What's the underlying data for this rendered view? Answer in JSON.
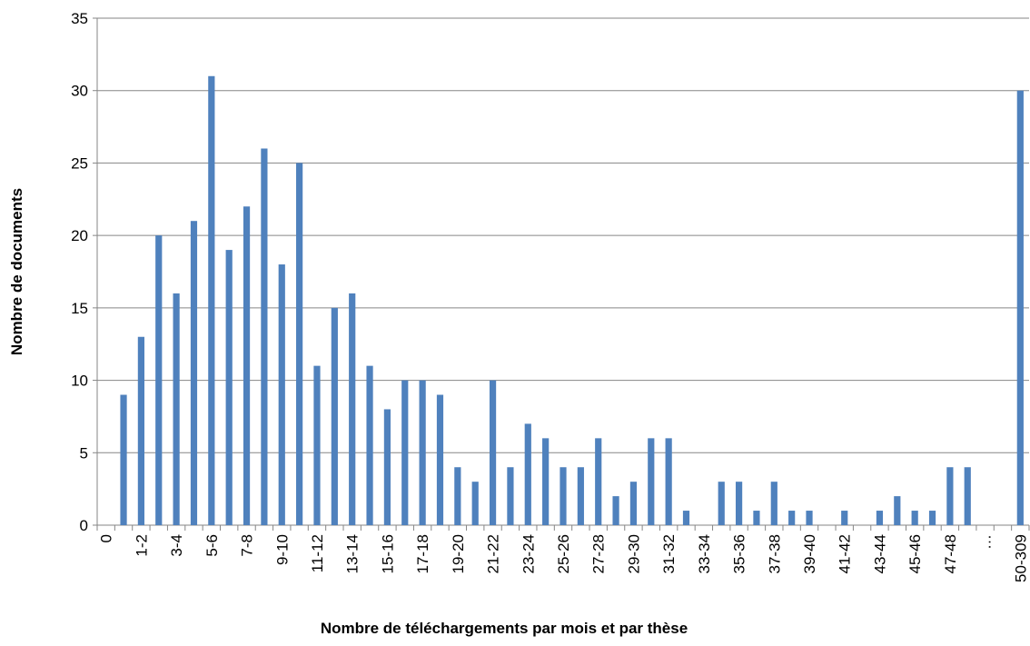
{
  "chart_data": {
    "type": "bar",
    "x_label": "Nombre de téléchargements par mois et par thèse",
    "y_label": "Nombre de documents",
    "categories": [
      "0",
      null,
      "1-2",
      null,
      "3-4",
      null,
      "5-6",
      null,
      "7-8",
      null,
      "9-10",
      null,
      "11-12",
      null,
      "13-14",
      null,
      "15-16",
      null,
      "17-18",
      null,
      "19-20",
      null,
      "21-22",
      null,
      "23-24",
      null,
      "25-26",
      null,
      "27-28",
      null,
      "29-30",
      null,
      "31-32",
      null,
      "33-34",
      null,
      "35-36",
      null,
      "37-38",
      null,
      "39-40",
      null,
      "41-42",
      null,
      "43-44",
      null,
      "45-46",
      null,
      "47-48",
      null,
      "…",
      null,
      "50-309"
    ],
    "values": [
      0,
      9,
      13,
      20,
      16,
      21,
      31,
      19,
      22,
      26,
      18,
      25,
      11,
      15,
      16,
      11,
      8,
      10,
      10,
      9,
      4,
      3,
      10,
      4,
      7,
      6,
      4,
      4,
      6,
      2,
      3,
      6,
      6,
      1,
      0,
      3,
      3,
      1,
      3,
      1,
      1,
      0,
      1,
      0,
      1,
      2,
      1,
      1,
      4,
      4,
      0,
      0,
      30
    ],
    "color": "#4f81bd",
    "ylim": [
      0,
      35
    ],
    "yticks": [
      0,
      5,
      10,
      15,
      20,
      25,
      30,
      35
    ],
    "grid": true
  }
}
